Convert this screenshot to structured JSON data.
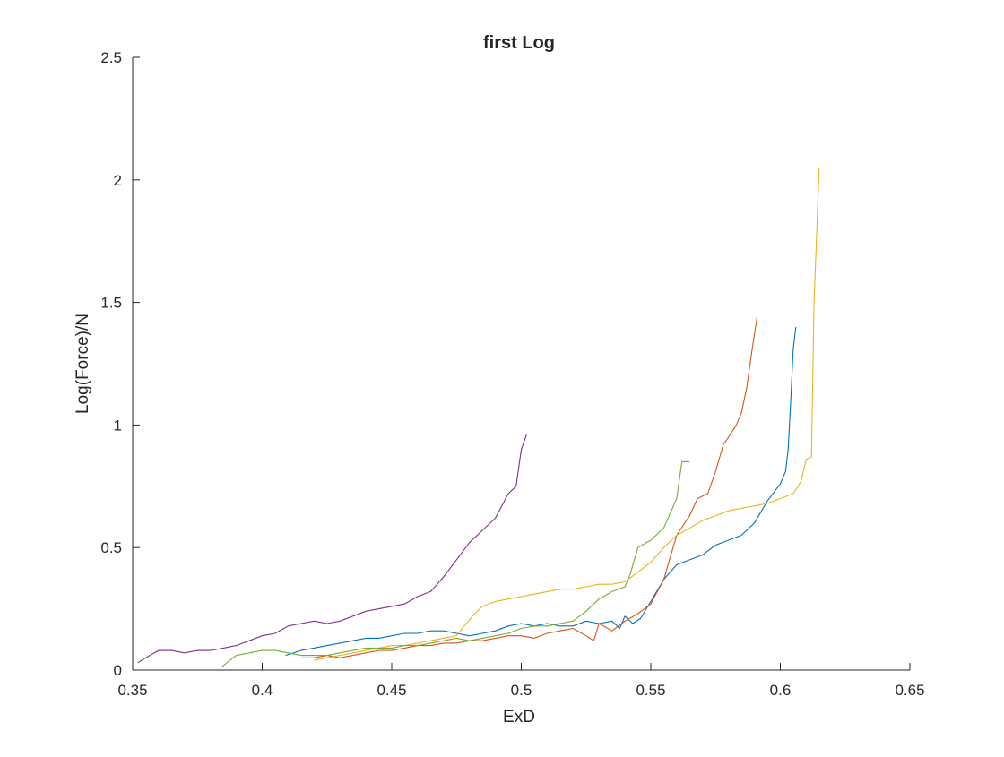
{
  "chart_data": {
    "type": "line",
    "title": "first Log",
    "xlabel": "ExD",
    "ylabel": "Log(Force)/N",
    "xlim": [
      0.35,
      0.65
    ],
    "ylim": [
      0,
      2.5
    ],
    "xticks": [
      "0.35",
      "0.4",
      "0.45",
      "0.5",
      "0.55",
      "0.6",
      "0.65"
    ],
    "yticks": [
      "0",
      "0.5",
      "1",
      "1.5",
      "2",
      "2.5"
    ],
    "xtick_values": [
      0.35,
      0.4,
      0.45,
      0.5,
      0.55,
      0.6,
      0.65
    ],
    "ytick_values": [
      0,
      0.5,
      1,
      1.5,
      2,
      2.5
    ],
    "grid": false,
    "legend": "none",
    "series": [
      {
        "color": "#0072BD",
        "x": [
          0.409,
          0.415,
          0.42,
          0.425,
          0.43,
          0.435,
          0.44,
          0.445,
          0.45,
          0.455,
          0.46,
          0.465,
          0.47,
          0.475,
          0.48,
          0.485,
          0.49,
          0.495,
          0.5,
          0.505,
          0.51,
          0.515,
          0.52,
          0.525,
          0.53,
          0.535,
          0.538,
          0.54,
          0.543,
          0.546,
          0.55,
          0.555,
          0.56,
          0.565,
          0.57,
          0.575,
          0.58,
          0.585,
          0.59,
          0.595,
          0.6,
          0.602,
          0.603,
          0.604,
          0.605,
          0.606
        ],
        "values": [
          0.06,
          0.08,
          0.09,
          0.1,
          0.11,
          0.12,
          0.13,
          0.13,
          0.14,
          0.15,
          0.15,
          0.16,
          0.16,
          0.15,
          0.14,
          0.15,
          0.16,
          0.18,
          0.19,
          0.18,
          0.19,
          0.18,
          0.18,
          0.2,
          0.19,
          0.2,
          0.17,
          0.22,
          0.19,
          0.21,
          0.28,
          0.37,
          0.43,
          0.45,
          0.47,
          0.51,
          0.53,
          0.55,
          0.6,
          0.69,
          0.76,
          0.81,
          0.9,
          1.1,
          1.31,
          1.4
        ]
      },
      {
        "color": "#D95319",
        "x": [
          0.415,
          0.42,
          0.425,
          0.43,
          0.435,
          0.44,
          0.445,
          0.45,
          0.455,
          0.46,
          0.465,
          0.47,
          0.475,
          0.48,
          0.485,
          0.49,
          0.495,
          0.5,
          0.505,
          0.51,
          0.515,
          0.52,
          0.525,
          0.528,
          0.53,
          0.535,
          0.54,
          0.545,
          0.55,
          0.555,
          0.56,
          0.565,
          0.568,
          0.572,
          0.575,
          0.578,
          0.58,
          0.583,
          0.585,
          0.587,
          0.589,
          0.591
        ],
        "values": [
          0.05,
          0.05,
          0.06,
          0.05,
          0.06,
          0.07,
          0.08,
          0.08,
          0.09,
          0.1,
          0.1,
          0.11,
          0.11,
          0.12,
          0.12,
          0.13,
          0.14,
          0.14,
          0.13,
          0.15,
          0.16,
          0.17,
          0.14,
          0.12,
          0.19,
          0.16,
          0.2,
          0.23,
          0.27,
          0.37,
          0.55,
          0.63,
          0.7,
          0.72,
          0.81,
          0.92,
          0.95,
          1.0,
          1.05,
          1.15,
          1.3,
          1.44
        ]
      },
      {
        "color": "#EDB120",
        "x": [
          0.42,
          0.425,
          0.43,
          0.435,
          0.44,
          0.445,
          0.45,
          0.455,
          0.46,
          0.465,
          0.47,
          0.475,
          0.478,
          0.482,
          0.485,
          0.49,
          0.495,
          0.5,
          0.505,
          0.51,
          0.515,
          0.52,
          0.525,
          0.53,
          0.535,
          0.54,
          0.545,
          0.55,
          0.555,
          0.56,
          0.565,
          0.57,
          0.575,
          0.58,
          0.585,
          0.59,
          0.595,
          0.6,
          0.605,
          0.608,
          0.61,
          0.612,
          0.613,
          0.615
        ],
        "values": [
          0.04,
          0.05,
          0.06,
          0.07,
          0.08,
          0.09,
          0.1,
          0.1,
          0.11,
          0.12,
          0.13,
          0.14,
          0.18,
          0.23,
          0.26,
          0.28,
          0.29,
          0.3,
          0.31,
          0.32,
          0.33,
          0.33,
          0.34,
          0.35,
          0.35,
          0.36,
          0.4,
          0.44,
          0.5,
          0.55,
          0.58,
          0.61,
          0.63,
          0.65,
          0.66,
          0.67,
          0.68,
          0.7,
          0.72,
          0.77,
          0.86,
          0.87,
          1.5,
          2.05
        ]
      },
      {
        "color": "#7E2F8E",
        "x": [
          0.352,
          0.355,
          0.36,
          0.365,
          0.37,
          0.375,
          0.38,
          0.385,
          0.39,
          0.395,
          0.4,
          0.405,
          0.41,
          0.415,
          0.42,
          0.425,
          0.43,
          0.435,
          0.44,
          0.445,
          0.45,
          0.455,
          0.46,
          0.465,
          0.47,
          0.475,
          0.48,
          0.485,
          0.49,
          0.495,
          0.498,
          0.5,
          0.502
        ],
        "values": [
          0.03,
          0.05,
          0.08,
          0.08,
          0.07,
          0.08,
          0.08,
          0.09,
          0.1,
          0.12,
          0.14,
          0.15,
          0.18,
          0.19,
          0.2,
          0.19,
          0.2,
          0.22,
          0.24,
          0.25,
          0.26,
          0.27,
          0.3,
          0.32,
          0.38,
          0.45,
          0.52,
          0.57,
          0.62,
          0.72,
          0.75,
          0.9,
          0.96
        ]
      },
      {
        "color": "#77AC30",
        "x": [
          0.384,
          0.39,
          0.395,
          0.4,
          0.405,
          0.41,
          0.415,
          0.42,
          0.425,
          0.43,
          0.435,
          0.44,
          0.445,
          0.45,
          0.455,
          0.46,
          0.465,
          0.47,
          0.475,
          0.48,
          0.485,
          0.49,
          0.495,
          0.5,
          0.505,
          0.51,
          0.515,
          0.52,
          0.525,
          0.53,
          0.535,
          0.54,
          0.542,
          0.545,
          0.55,
          0.555,
          0.56,
          0.562,
          0.565
        ],
        "values": [
          0.01,
          0.06,
          0.07,
          0.08,
          0.08,
          0.07,
          0.06,
          0.06,
          0.06,
          0.07,
          0.08,
          0.09,
          0.09,
          0.09,
          0.1,
          0.1,
          0.11,
          0.12,
          0.13,
          0.12,
          0.13,
          0.14,
          0.15,
          0.17,
          0.18,
          0.18,
          0.19,
          0.2,
          0.24,
          0.29,
          0.32,
          0.34,
          0.39,
          0.5,
          0.53,
          0.58,
          0.7,
          0.85,
          0.85
        ]
      }
    ]
  }
}
